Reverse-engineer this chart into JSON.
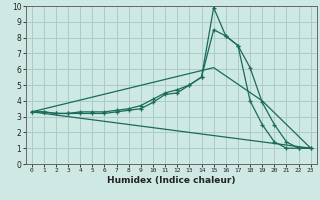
{
  "xlabel": "Humidex (Indice chaleur)",
  "bg_color": "#cee8e4",
  "grid_color": "#aaccca",
  "line_color": "#1a6b5a",
  "xlim": [
    -0.5,
    23.5
  ],
  "ylim": [
    0,
    10
  ],
  "xticks": [
    0,
    1,
    2,
    3,
    4,
    5,
    6,
    7,
    8,
    9,
    10,
    11,
    12,
    13,
    14,
    15,
    16,
    17,
    18,
    19,
    20,
    21,
    22,
    23
  ],
  "yticks": [
    0,
    1,
    2,
    3,
    4,
    5,
    6,
    7,
    8,
    9,
    10
  ],
  "line1_x": [
    0,
    1,
    2,
    3,
    4,
    5,
    6,
    7,
    8,
    9,
    10,
    11,
    12,
    13,
    14,
    15,
    16,
    17,
    18,
    19,
    20,
    21,
    22,
    23
  ],
  "line1_y": [
    3.3,
    3.3,
    3.2,
    3.2,
    3.2,
    3.2,
    3.2,
    3.3,
    3.4,
    3.5,
    3.9,
    4.4,
    4.5,
    5.0,
    5.5,
    9.9,
    8.1,
    7.5,
    4.0,
    2.5,
    1.4,
    1.0,
    1.0,
    1.0
  ],
  "line2_x": [
    0,
    1,
    2,
    3,
    4,
    5,
    6,
    7,
    8,
    9,
    10,
    11,
    12,
    13,
    14,
    15,
    16,
    17,
    18,
    19,
    20,
    21,
    22,
    23
  ],
  "line2_y": [
    3.3,
    3.3,
    3.2,
    3.2,
    3.3,
    3.3,
    3.3,
    3.4,
    3.5,
    3.7,
    4.1,
    4.5,
    4.7,
    5.0,
    5.5,
    8.5,
    8.1,
    7.5,
    6.1,
    3.9,
    2.5,
    1.4,
    1.0,
    1.0
  ],
  "line3_x": [
    0,
    23
  ],
  "line3_y": [
    3.3,
    1.0
  ],
  "line4_x": [
    0,
    15,
    19,
    23
  ],
  "line4_y": [
    3.3,
    6.1,
    4.0,
    1.0
  ]
}
